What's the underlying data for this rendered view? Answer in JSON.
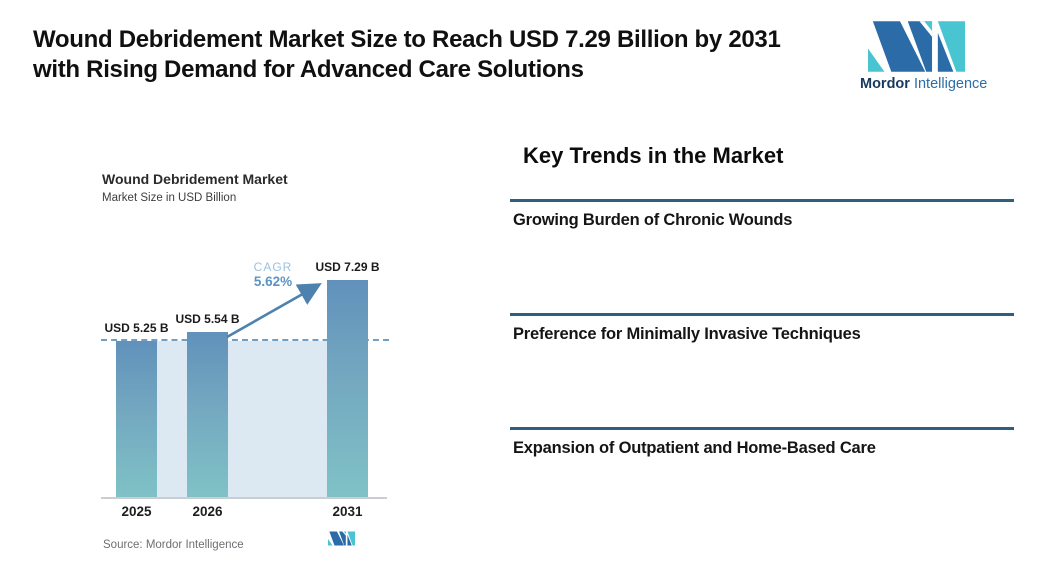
{
  "header": {
    "title_line1": "Wound Debridement Market Size to Reach USD 7.29 Billion by 2031",
    "title_line2": "with Rising Demand for Advanced Care Solutions"
  },
  "brand": {
    "name_bold": "Mordor",
    "name_regular": "Intelligence",
    "colors": {
      "dark_blue": "#2b6ba8",
      "teal": "#49c5d2",
      "text_navy": "#16395f",
      "text_blue": "#2c6da6"
    }
  },
  "chart": {
    "title": "Wound Debridement Market",
    "subtitle": "Market Size in USD Billion",
    "cagr_label": "CAGR",
    "cagr_value": "5.62%",
    "source": "Source: Mordor Intelligence"
  },
  "chart_data": {
    "type": "bar",
    "title": "Wound Debridement Market",
    "ylabel": "Market Size in USD Billion",
    "categories": [
      "2025",
      "2026",
      "2031"
    ],
    "values": [
      5.25,
      5.54,
      7.29
    ],
    "bar_labels": [
      "USD 5.25 B",
      "USD 5.54 B",
      "USD 7.29 B"
    ],
    "cagr_percent": 5.62,
    "reference_line_value": 5.25,
    "ylim": [
      0,
      8
    ],
    "grid": false,
    "legend": "none",
    "colors": {
      "bar_top": "#6191bb",
      "bar_bottom": "#7fc2c6",
      "shaded_area": "#dce8f2",
      "dashed_line": "#6e9fc8",
      "arrow": "#4d82ae",
      "cagr_text": "#5c93c5"
    }
  },
  "trends": {
    "heading": "Key Trends in the Market",
    "items": [
      "Growing Burden of Chronic Wounds",
      "Preference for Minimally Invasive Techniques",
      "Expansion of Outpatient and Home-Based Care"
    ]
  }
}
